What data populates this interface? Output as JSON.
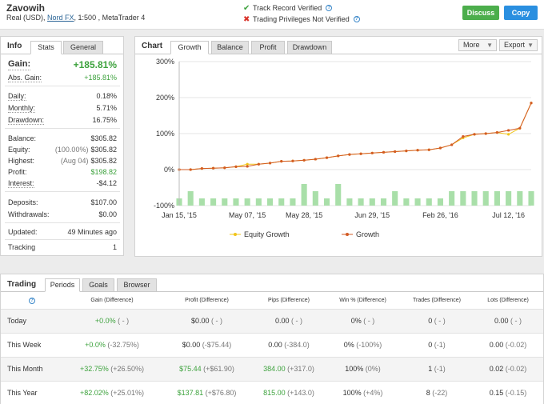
{
  "account": {
    "name": "Zavowih",
    "type": "Real (USD),",
    "broker": "Nord FX",
    "details": ", 1:500 , MetaTrader 4"
  },
  "verification": {
    "track_record": "Track Record Verified",
    "trading_privileges": "Trading Privileges Not Verified"
  },
  "buttons": {
    "discuss": "Discuss",
    "copy": "Copy"
  },
  "info": {
    "title": "Info",
    "tabs": [
      "Stats",
      "General"
    ],
    "gain": {
      "label": "Gain:",
      "value": "+185.81%"
    },
    "abs_gain": {
      "label": "Abs. Gain:",
      "value": "+185.81%"
    },
    "daily": {
      "label": "Daily:",
      "value": "0.18%"
    },
    "monthly": {
      "label": "Monthly:",
      "value": "5.71%"
    },
    "drawdown": {
      "label": "Drawdown:",
      "value": "16.75%"
    },
    "balance": {
      "label": "Balance:",
      "value": "$305.82"
    },
    "equity": {
      "label": "Equity:",
      "sub": "(100.00%)",
      "value": "$305.82"
    },
    "highest": {
      "label": "Highest:",
      "sub": "(Aug 04)",
      "value": "$305.82"
    },
    "profit": {
      "label": "Profit:",
      "value": "$198.82"
    },
    "interest": {
      "label": "Interest:",
      "value": "-$4.12"
    },
    "deposits": {
      "label": "Deposits:",
      "value": "$107.00"
    },
    "withdrawals": {
      "label": "Withdrawals:",
      "value": "$0.00"
    },
    "updated": {
      "label": "Updated:",
      "value": "49 Minutes ago"
    },
    "tracking": {
      "label": "Tracking",
      "value": "1"
    }
  },
  "chart_panel": {
    "title": "Chart",
    "tabs": [
      "Growth",
      "Balance",
      "Profit",
      "Drawdown"
    ],
    "more": "More",
    "export": "Export"
  },
  "chart_data": {
    "type": "line",
    "title": "Growth",
    "ylim": [
      -100,
      300
    ],
    "yticks": [
      "300%",
      "200%",
      "100%",
      "0%",
      "-100%"
    ],
    "xtick_labels": [
      "Jan 15, '15",
      "May 07, '15",
      "May 28, '15",
      "Jun 29, '15",
      "Feb 26, '16",
      "Jul 12, '16"
    ],
    "xtick_index": [
      0,
      6,
      11,
      17,
      23,
      29
    ],
    "legend": [
      "Equity Growth",
      "Growth"
    ],
    "colors": {
      "equity": "#f0c419",
      "growth": "#d35b24",
      "bars": "#a9dfa9"
    },
    "series": [
      {
        "name": "Growth",
        "values": [
          0,
          0,
          3,
          4,
          5,
          8,
          9,
          15,
          18,
          23,
          24,
          26,
          29,
          33,
          38,
          42,
          44,
          46,
          48,
          50,
          52,
          54,
          55,
          60,
          69,
          92,
          98,
          100,
          103,
          109,
          115,
          185
        ]
      },
      {
        "name": "Equity Growth",
        "values": [
          0,
          0,
          3,
          4,
          5,
          8,
          15,
          15,
          18,
          23,
          24,
          26,
          29,
          33,
          38,
          42,
          44,
          46,
          48,
          50,
          52,
          54,
          55,
          60,
          69,
          88,
          98,
          100,
          103,
          98,
          115,
          185
        ]
      },
      {
        "name": "Monthly",
        "values": [
          20,
          40,
          20,
          20,
          20,
          20,
          20,
          20,
          20,
          20,
          20,
          60,
          40,
          20,
          60,
          20,
          20,
          20,
          20,
          40,
          20,
          20,
          20,
          20,
          40,
          40,
          40,
          40,
          40,
          40,
          40,
          40
        ]
      }
    ]
  },
  "trading": {
    "title": "Trading",
    "tabs": [
      "Periods",
      "Goals",
      "Browser"
    ],
    "columns": [
      "Gain (Difference)",
      "Profit (Difference)",
      "Pips (Difference)",
      "Win % (Difference)",
      "Trades (Difference)",
      "Lots (Difference)"
    ],
    "rows": [
      {
        "label": "Today",
        "gain": "+0.0%",
        "gain_d": "( - )",
        "profit": "$0.00",
        "profit_d": "( - )",
        "pips": "0.00",
        "pips_d": "( - )",
        "win": "0%",
        "win_d": "( - )",
        "trades": "0",
        "trades_d": "( - )",
        "lots": "0.00",
        "lots_d": "( - )"
      },
      {
        "label": "This Week",
        "gain": "+0.0%",
        "gain_d": "(-32.75%)",
        "profit": "$0.00",
        "profit_d": "(-$75.44)",
        "pips": "0.00",
        "pips_d": "(-384.0)",
        "win": "0%",
        "win_d": "(-100%)",
        "trades": "0",
        "trades_d": "(-1)",
        "lots": "0.00",
        "lots_d": "(-0.02)"
      },
      {
        "label": "This Month",
        "gain": "+32.75%",
        "gain_d": "(+26.50%)",
        "profit": "$75.44",
        "profit_d": "(+$61.90)",
        "pips": "384.00",
        "pips_d": "(+317.0)",
        "win": "100%",
        "win_d": "(0%)",
        "trades": "1",
        "trades_d": "(-1)",
        "lots": "0.02",
        "lots_d": "(-0.02)"
      },
      {
        "label": "This Year",
        "gain": "+82.02%",
        "gain_d": "(+25.01%)",
        "profit": "$137.81",
        "profit_d": "(+$76.80)",
        "pips": "815.00",
        "pips_d": "(+143.0)",
        "win": "100%",
        "win_d": "(+4%)",
        "trades": "8",
        "trades_d": "(-22)",
        "lots": "0.15",
        "lots_d": "(-0.15)"
      }
    ]
  }
}
